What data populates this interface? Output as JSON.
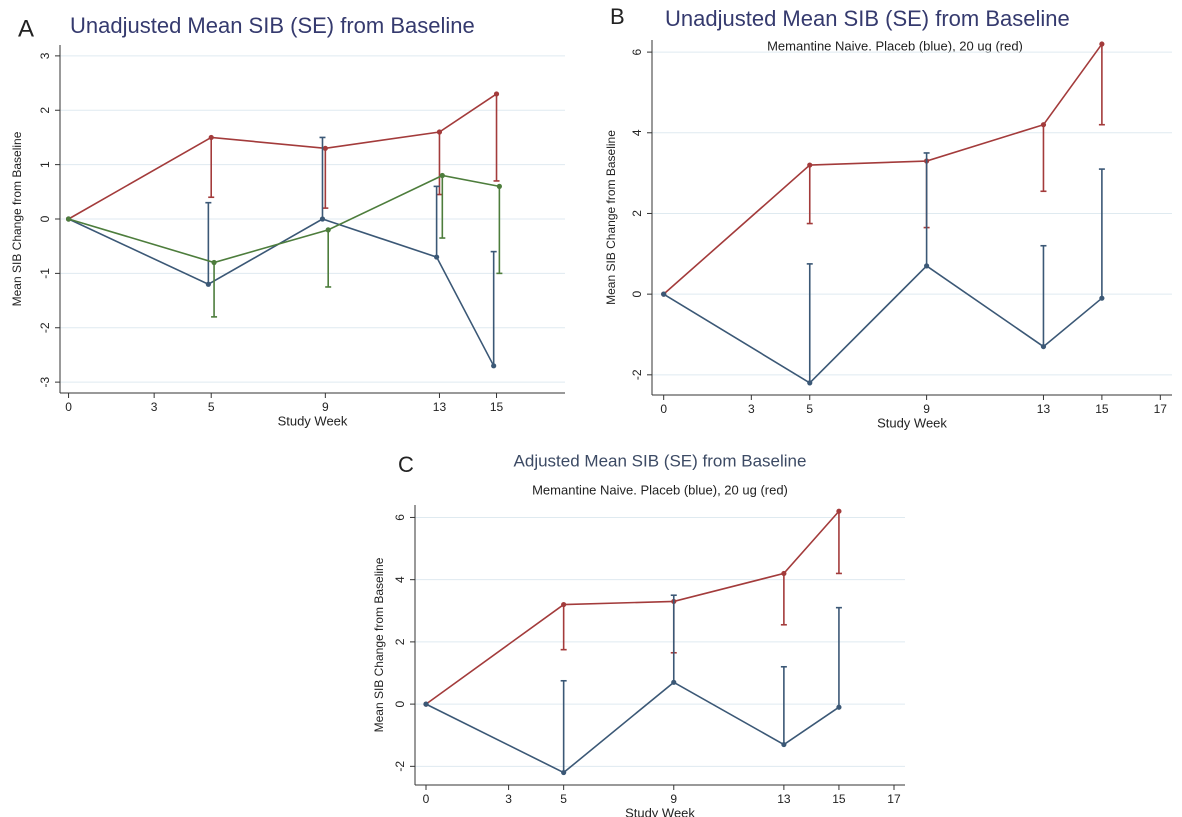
{
  "chart_data": [
    {
      "type": "line",
      "panel_label": "A",
      "title": "Unadjusted Mean SIB (SE) from Baseline",
      "x_label": "Study Week",
      "y_label": "Mean SIB Change from Baseline",
      "xlim": [
        -0.3,
        17.4
      ],
      "xticks": [
        0,
        3,
        5,
        9,
        13,
        15
      ],
      "ylim": [
        -3.2,
        3.2
      ],
      "yticks": [
        -3,
        -2,
        -1,
        0,
        1,
        2,
        3
      ],
      "grid": true,
      "series": [
        {
          "color": "#a33b3b",
          "x": [
            0,
            5,
            9,
            13,
            15
          ],
          "values": [
            0,
            1.5,
            1.3,
            1.6,
            2.3
          ],
          "errors": [
            null,
            1.1,
            1.1,
            1.15,
            1.6
          ],
          "error_direction": "down"
        },
        {
          "color": "#3b5876",
          "x": [
            0,
            4.9,
            8.9,
            12.9,
            14.9
          ],
          "values": [
            0,
            -1.2,
            0,
            -0.7,
            -2.7
          ],
          "errors": [
            null,
            1.5,
            1.5,
            1.3,
            2.1
          ],
          "error_direction": "up"
        },
        {
          "color": "#4d7d3c",
          "x": [
            0,
            5.1,
            9.1,
            13.1,
            15.1
          ],
          "values": [
            0,
            -0.8,
            -0.2,
            0.8,
            0.6
          ],
          "errors": [
            null,
            1.0,
            1.05,
            1.15,
            1.6
          ],
          "error_direction": "down"
        }
      ]
    },
    {
      "type": "line",
      "panel_label": "B",
      "title": "Unadjusted Mean SIB (SE) from Baseline",
      "subtitle": "Memantine Naive. Placeb (blue), 20 ug (red)",
      "x_label": "Study Week",
      "y_label": "Mean SIB Change from Baseline",
      "xlim": [
        -0.4,
        17.4
      ],
      "xticks": [
        0,
        3,
        5,
        9,
        13,
        15,
        17
      ],
      "ylim": [
        -2.5,
        6.3
      ],
      "yticks": [
        -2,
        0,
        2,
        4,
        6
      ],
      "grid": true,
      "series": [
        {
          "color": "#a33b3b",
          "x": [
            0,
            5,
            9,
            13,
            15
          ],
          "values": [
            0,
            3.2,
            3.3,
            4.2,
            6.2
          ],
          "errors": [
            null,
            1.45,
            1.65,
            1.65,
            2.0
          ],
          "error_direction": "down"
        },
        {
          "color": "#3b5876",
          "x": [
            0,
            5,
            9,
            13,
            15
          ],
          "values": [
            0,
            -2.2,
            0.7,
            -1.3,
            -0.1
          ],
          "errors": [
            null,
            2.95,
            2.8,
            2.5,
            3.2
          ],
          "error_direction": "up"
        }
      ]
    },
    {
      "type": "line",
      "panel_label": "C",
      "title": "Adjusted Mean SIB (SE) from Baseline",
      "subtitle": "Memantine Naive. Placeb (blue), 20 ug (red)",
      "x_label": "Study Week",
      "y_label": "Mean SIB Change from Baseline",
      "xlim": [
        -0.4,
        17.4
      ],
      "xticks": [
        0,
        3,
        5,
        9,
        13,
        15,
        17
      ],
      "ylim": [
        -2.6,
        6.4
      ],
      "yticks": [
        -2,
        0,
        2,
        4,
        6
      ],
      "grid": true,
      "series": [
        {
          "color": "#a33b3b",
          "x": [
            0,
            5,
            9,
            13,
            15
          ],
          "values": [
            0,
            3.2,
            3.3,
            4.2,
            6.2
          ],
          "errors": [
            null,
            1.45,
            1.65,
            1.65,
            2.0
          ],
          "error_direction": "down"
        },
        {
          "color": "#3b5876",
          "x": [
            0,
            5,
            9,
            13,
            15
          ],
          "values": [
            0,
            -2.2,
            0.7,
            -1.3,
            -0.1
          ],
          "errors": [
            null,
            2.95,
            2.8,
            2.5,
            3.2
          ],
          "error_direction": "up"
        }
      ]
    }
  ]
}
